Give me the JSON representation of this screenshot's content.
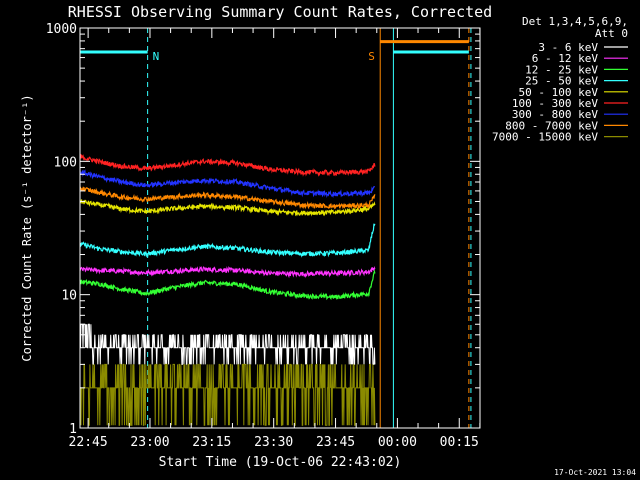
{
  "chart_data": {
    "type": "line",
    "title": "RHESSI Observing Summary Count Rates, Corrected",
    "xlabel": "Start Time (19-Oct-06 22:43:02)",
    "ylabel": "Corrected Count Rate (s⁻¹ detector⁻¹)",
    "yscale": "log",
    "ylim": [
      1,
      1000
    ],
    "xlim_minutes": [
      0,
      97
    ],
    "x_tick_labels": [
      "22:45",
      "23:00",
      "23:15",
      "23:30",
      "23:45",
      "00:00",
      "00:15"
    ],
    "x_tick_minutes": [
      1.97,
      16.97,
      31.97,
      46.97,
      61.97,
      76.97,
      91.97
    ],
    "y_tick_labels": [
      "1",
      "10",
      "100",
      "1000"
    ],
    "y_tick_values": [
      1,
      10,
      100,
      1000
    ],
    "grid": false,
    "legend_header": [
      "Det 1,3,4,5,6,9,",
      "Att 0"
    ],
    "legend_placement": "right",
    "series": [
      {
        "name": "3 - 6 keV",
        "color": "#ffffff",
        "x_minutes": [
          0,
          5,
          10,
          16,
          22,
          30,
          38,
          46,
          54,
          62,
          70,
          71.6
        ],
        "values": [
          6,
          4.5,
          4.2,
          4.0,
          4.0,
          4.1,
          4.0,
          3.9,
          3.9,
          4.0,
          4.0,
          4.2
        ]
      },
      {
        "name": "6 - 12 keV",
        "color": "#ff33ff",
        "x_minutes": [
          0,
          5,
          10,
          16,
          22,
          30,
          38,
          46,
          54,
          62,
          70,
          71.6
        ],
        "values": [
          15.5,
          15.2,
          15.0,
          14.6,
          15.0,
          15.5,
          15.2,
          14.5,
          14.3,
          14.5,
          14.8,
          16
        ]
      },
      {
        "name": "12 - 25 keV",
        "color": "#33ff33",
        "x_minutes": [
          0,
          5,
          10,
          16,
          22,
          30,
          38,
          46,
          54,
          62,
          70,
          71.6
        ],
        "values": [
          12.5,
          12,
          11,
          10.2,
          11.2,
          12.3,
          12,
          10.5,
          9.8,
          9.6,
          10.2,
          15
        ]
      },
      {
        "name": "25 - 50 keV",
        "color": "#33ffff",
        "x_minutes": [
          0,
          5,
          10,
          16,
          22,
          30,
          38,
          46,
          54,
          62,
          70,
          71.6
        ],
        "values": [
          24,
          22,
          21,
          20.2,
          21.5,
          23,
          22.3,
          20.8,
          20.3,
          20.5,
          21.5,
          35
        ]
      },
      {
        "name": "50 - 100 keV",
        "color": "#e5e500",
        "x_minutes": [
          0,
          5,
          10,
          16,
          22,
          30,
          38,
          46,
          54,
          62,
          70,
          71.6
        ],
        "values": [
          50,
          47,
          44,
          42,
          44,
          46,
          45,
          42,
          41,
          41.5,
          44,
          48
        ]
      },
      {
        "name": "100 - 300 keV",
        "color": "#ff2222",
        "x_minutes": [
          0,
          5,
          10,
          16,
          22,
          30,
          38,
          46,
          54,
          62,
          70,
          71.6
        ],
        "values": [
          108,
          99,
          92,
          88,
          93,
          100,
          97,
          87,
          83,
          82,
          84,
          95
        ]
      },
      {
        "name": "300 - 800 keV",
        "color": "#2233ff",
        "x_minutes": [
          0,
          5,
          10,
          16,
          22,
          30,
          38,
          46,
          54,
          62,
          70,
          71.6
        ],
        "values": [
          83,
          76,
          70,
          66,
          69,
          72,
          70,
          63,
          58,
          57,
          58,
          63
        ]
      },
      {
        "name": "800 - 7000 keV",
        "color": "#ff8800",
        "x_minutes": [
          0,
          5,
          10,
          16,
          22,
          30,
          38,
          46,
          54,
          62,
          70,
          71.6
        ],
        "values": [
          63,
          58,
          54,
          52,
          54,
          56,
          54,
          50,
          47,
          46,
          47,
          55
        ]
      },
      {
        "name": "7000 - 15000 keV",
        "color": "#8b8b00",
        "x_minutes": [
          0,
          5,
          10,
          16,
          22,
          30,
          38,
          46,
          54,
          62,
          70,
          71.6
        ],
        "values": [
          2.4,
          2.2,
          2.1,
          2.0,
          2.2,
          2.3,
          2.1,
          2.0,
          2.0,
          2.1,
          2.1,
          2.2
        ]
      }
    ],
    "annotations": [
      {
        "text": "N",
        "color": "#33ffff",
        "x_minutes": 16.4
      },
      {
        "text": "S",
        "color": "#ff8800",
        "x_minutes": 72.8
      }
    ],
    "status_bars": [
      {
        "name": "night",
        "color": "#33ffff",
        "y_value": 660,
        "segments": [
          [
            0,
            16.4
          ],
          [
            76.0,
            94.3
          ]
        ]
      },
      {
        "name": "saa",
        "color": "#ff8800",
        "y_value": 790,
        "segments": [
          [
            72.8,
            94.3
          ]
        ]
      }
    ],
    "vertical_lines": [
      {
        "x_minutes": 0,
        "color": "#33ffff",
        "style": "solid"
      },
      {
        "x_minutes": 16.4,
        "color": "#33ffff",
        "style": "dashed"
      },
      {
        "x_minutes": 72.8,
        "color": "#ff8800",
        "style": "solid"
      },
      {
        "x_minutes": 76.0,
        "color": "#33ffff",
        "style": "solid"
      },
      {
        "x_minutes": 94.3,
        "color": "#ff8800",
        "style": "dashed"
      },
      {
        "x_minutes": 94.8,
        "color": "#33ffff",
        "style": "dashed"
      }
    ],
    "footer_date": "17-Oct-2021 13:04"
  }
}
